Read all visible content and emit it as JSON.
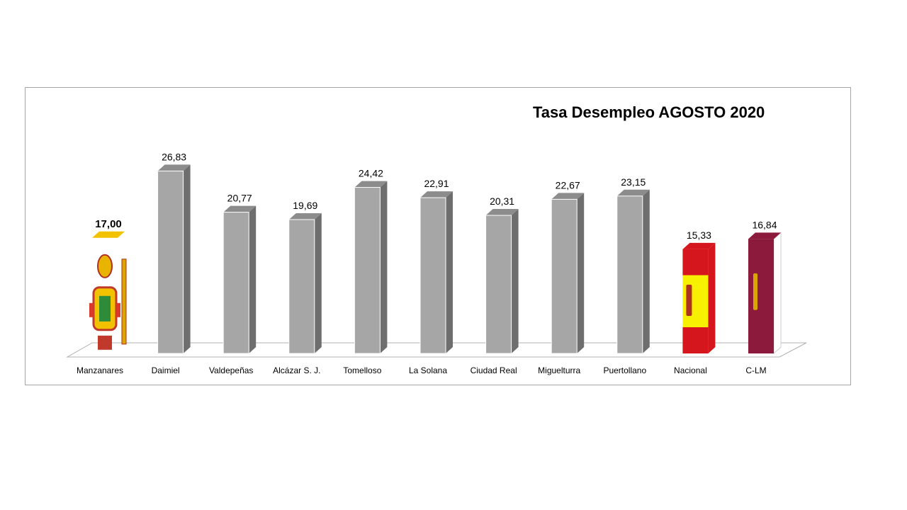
{
  "chart_data": {
    "type": "bar",
    "title": "Tasa Desempleo AGOSTO 2020",
    "categories": [
      "Manzanares",
      "Daimiel",
      "Valdepeñas",
      "Alcázar S. J.",
      "Tomelloso",
      "La Solana",
      "Ciudad Real",
      "Miguelturra",
      "Puertollano",
      "Nacional",
      "C-LM"
    ],
    "value_labels": [
      "17,00",
      "26,83",
      "20,77",
      "19,69",
      "24,42",
      "22,91",
      "20,31",
      "22,67",
      "23,15",
      "15,33",
      "16,84"
    ],
    "values": [
      17.0,
      26.83,
      20.77,
      19.69,
      24.42,
      22.91,
      20.31,
      22.67,
      23.15,
      15.33,
      16.84
    ],
    "bar_styles": [
      "coat-of-arms",
      "gray",
      "gray",
      "gray",
      "gray",
      "gray",
      "gray",
      "gray",
      "gray",
      "spain-flag",
      "clm-flag"
    ],
    "ylim": [
      0,
      28
    ],
    "grid": false,
    "legend": "none"
  },
  "colors": {
    "bar_front": "#a6a6a6",
    "bar_side": "#6e6e6e",
    "bar_top": "#8c8c8c",
    "spain_red": "#d5161d",
    "spain_yellow": "#f7f000",
    "clm_crimson": "#8c1a3c",
    "floor_line": "#b0b0b0"
  }
}
